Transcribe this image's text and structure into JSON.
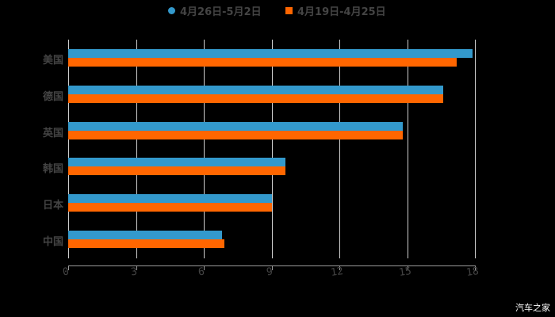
{
  "chart_data": {
    "type": "bar",
    "orientation": "horizontal",
    "title": "",
    "xlabel": "",
    "ylabel": "",
    "categories": [
      "美国",
      "德国",
      "英国",
      "韩国",
      "日本",
      "中国"
    ],
    "series": [
      {
        "name": "4月26日-5月2日",
        "color": "#3399cc",
        "values": [
          17.9,
          16.6,
          14.8,
          9.6,
          9.0,
          6.8
        ]
      },
      {
        "name": "4月19日-4月25日",
        "color": "#ff6600",
        "values": [
          17.2,
          16.6,
          14.8,
          9.6,
          9.0,
          6.9
        ]
      }
    ],
    "xlim": [
      0,
      18
    ],
    "x_ticks": [
      "0",
      "3",
      "6",
      "9",
      "12",
      "15",
      "18"
    ],
    "grid": true,
    "legend_position": "top"
  },
  "legend": {
    "items": [
      {
        "label": "4月26日-5月2日",
        "marker": "circle",
        "color": "#3399cc"
      },
      {
        "label": "4月19日-4月25日",
        "marker": "square",
        "color": "#ff6600"
      }
    ]
  },
  "watermark": "汽车之家"
}
